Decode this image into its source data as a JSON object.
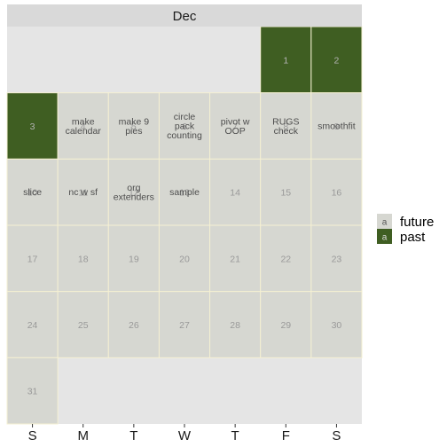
{
  "chart_data": {
    "type": "heatmap",
    "title": "",
    "month": "Dec",
    "weekdays": [
      "S",
      "M",
      "T",
      "W",
      "T",
      "F",
      "S"
    ],
    "first_weekday_index": 5,
    "days_in_month": 31,
    "fill_by": "status",
    "legend": {
      "placement": "right",
      "key_letter": "a",
      "entries": [
        {
          "name": "future",
          "color": "#d6d7d1"
        },
        {
          "name": "past",
          "color": "#3f5e22"
        }
      ]
    },
    "days": [
      {
        "day": 1,
        "status": "past",
        "event": ""
      },
      {
        "day": 2,
        "status": "past",
        "event": ""
      },
      {
        "day": 3,
        "status": "past",
        "event": ""
      },
      {
        "day": 4,
        "status": "future",
        "event": "make\ncalendar"
      },
      {
        "day": 5,
        "status": "future",
        "event": "make 9\npies"
      },
      {
        "day": 6,
        "status": "future",
        "event": "circle\npack\ncounting"
      },
      {
        "day": 7,
        "status": "future",
        "event": "pivot w\nOOP"
      },
      {
        "day": 8,
        "status": "future",
        "event": "RUGS\ncheck"
      },
      {
        "day": 9,
        "status": "future",
        "event": "smoothfit"
      },
      {
        "day": 10,
        "status": "future",
        "event": "slice"
      },
      {
        "day": 11,
        "status": "future",
        "event": "nc w sf"
      },
      {
        "day": 12,
        "status": "future",
        "event": "org\nextenders"
      },
      {
        "day": 13,
        "status": "future",
        "event": "sample"
      },
      {
        "day": 14,
        "status": "future",
        "event": ""
      },
      {
        "day": 15,
        "status": "future",
        "event": ""
      },
      {
        "day": 16,
        "status": "future",
        "event": ""
      },
      {
        "day": 17,
        "status": "future",
        "event": ""
      },
      {
        "day": 18,
        "status": "future",
        "event": ""
      },
      {
        "day": 19,
        "status": "future",
        "event": ""
      },
      {
        "day": 20,
        "status": "future",
        "event": ""
      },
      {
        "day": 21,
        "status": "future",
        "event": ""
      },
      {
        "day": 22,
        "status": "future",
        "event": ""
      },
      {
        "day": 23,
        "status": "future",
        "event": ""
      },
      {
        "day": 24,
        "status": "future",
        "event": ""
      },
      {
        "day": 25,
        "status": "future",
        "event": ""
      },
      {
        "day": 26,
        "status": "future",
        "event": ""
      },
      {
        "day": 27,
        "status": "future",
        "event": ""
      },
      {
        "day": 28,
        "status": "future",
        "event": ""
      },
      {
        "day": 29,
        "status": "future",
        "event": ""
      },
      {
        "day": 30,
        "status": "future",
        "event": ""
      },
      {
        "day": 31,
        "status": "future",
        "event": ""
      }
    ],
    "colors": {
      "panel_background": "#e5e5e5",
      "strip_background": "#d9d9d9",
      "tile_border": "#f5f0d3",
      "future_day_number": "#999999",
      "past_day_number": "#b3b3b3"
    }
  }
}
